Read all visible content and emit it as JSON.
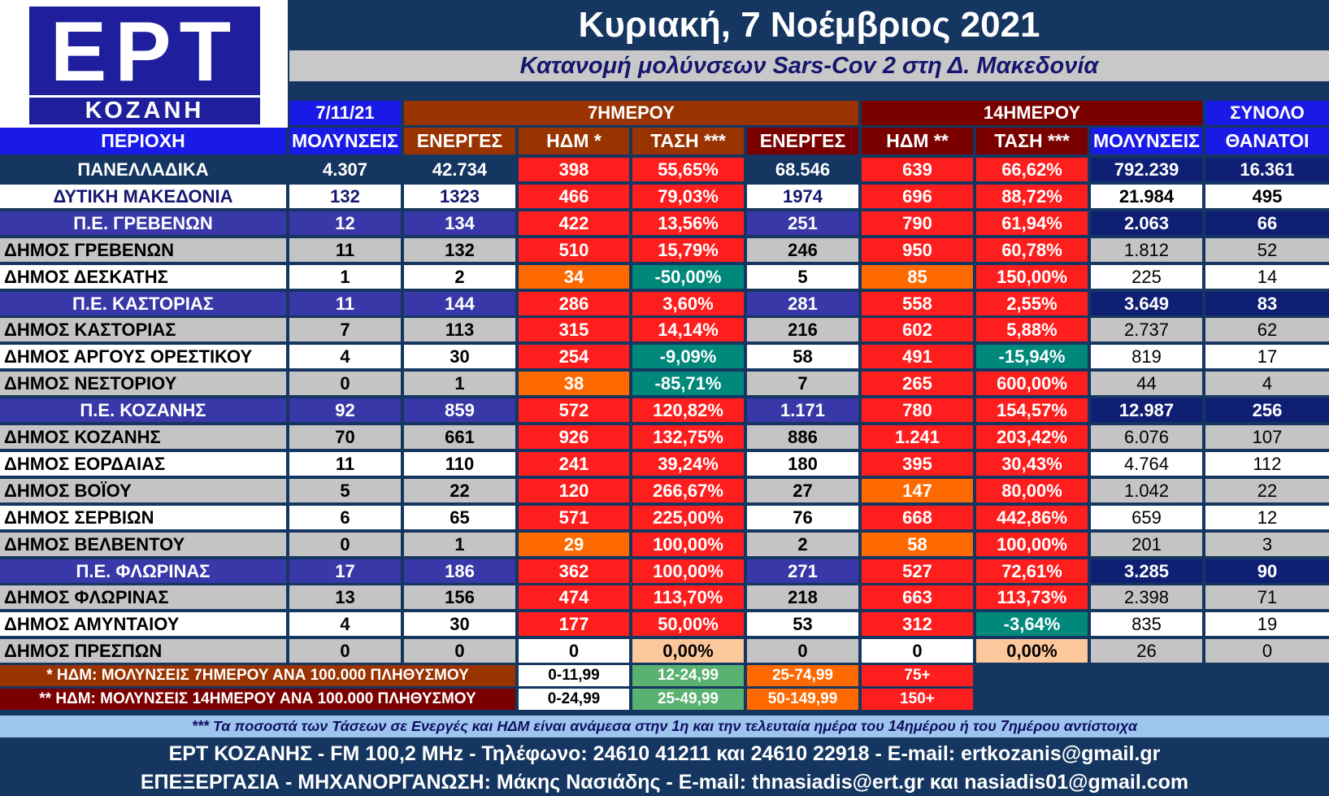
{
  "logo": {
    "brand": "ΕΡΤ",
    "city": "ΚΟΖΑΝΗ"
  },
  "header": {
    "date_title": "Κυριακή, 7 Νοέμβριος 2021",
    "subtitle": "Κατανομή μολύνσεων Sars-Cov 2 στη Δ. Μακεδονία"
  },
  "group_headers": {
    "date": "7/11/21",
    "seven_day": "7ΗΜΕΡΟΥ",
    "fourteen_day": "14ΗΜΕΡΟΥ",
    "total": "ΣΥΝΟΛΟ"
  },
  "column_headers": [
    "ΠΕΡΙΟΧΗ",
    "ΜΟΛΥΝΣΕΙΣ",
    "ΕΝΕΡΓΕΣ",
    "ΗΔΜ *",
    "ΤΑΣΗ ***",
    "ΕΝΕΡΓΕΣ",
    "ΗΔΜ **",
    "ΤΑΣΗ ***",
    "ΜΟΛΥΝΣΕΙΣ",
    "ΘΑΝΑΤΟΙ"
  ],
  "colors": {
    "background": "#143660",
    "header_blue": "#1a1ae6",
    "seven_day": "#993300",
    "fourteen_day": "#7a0000",
    "red": "#ff1e1e",
    "orange": "#ff6a00",
    "teal": "#00897b",
    "light_green": "#5ab270",
    "peach": "#fcc79a",
    "navy_total": "#0f1f73"
  },
  "rows": [
    {
      "type": "national",
      "cells": [
        "ΠΑΝΕΛΛΑΔΙΚΑ",
        "4.307",
        "42.734",
        "398",
        "55,65%",
        "68.546",
        "639",
        "66,62%",
        "792.239",
        "16.361"
      ],
      "levels": [
        "red",
        "red",
        "red",
        "red"
      ]
    },
    {
      "type": "macedonia",
      "cells": [
        "ΔΥΤΙΚΗ ΜΑΚΕΔΟΝΙΑ",
        "132",
        "1323",
        "466",
        "79,03%",
        "1974",
        "696",
        "88,72%",
        "21.984",
        "495"
      ],
      "levels": [
        "red",
        "red",
        "red",
        "red"
      ]
    },
    {
      "type": "pe",
      "cells": [
        "Π.Ε. ΓΡΕΒΕΝΩΝ",
        "12",
        "134",
        "422",
        "13,56%",
        "251",
        "790",
        "61,94%",
        "2.063",
        "66"
      ],
      "levels": [
        "red",
        "red",
        "red",
        "red"
      ]
    },
    {
      "type": "gray",
      "cells": [
        "ΔΗΜΟΣ ΓΡΕΒΕΝΩΝ",
        "11",
        "132",
        "510",
        "15,79%",
        "246",
        "950",
        "60,78%",
        "1.812",
        "52"
      ],
      "levels": [
        "red",
        "red",
        "red",
        "red"
      ]
    },
    {
      "type": "white",
      "cells": [
        "ΔΗΜΟΣ ΔΕΣΚΑΤΗΣ",
        "1",
        "2",
        "34",
        "-50,00%",
        "5",
        "85",
        "150,00%",
        "225",
        "14"
      ],
      "levels": [
        "orange",
        "teal",
        "orange",
        "red"
      ]
    },
    {
      "type": "pe",
      "cells": [
        "Π.Ε. ΚΑΣΤΟΡΙΑΣ",
        "11",
        "144",
        "286",
        "3,60%",
        "281",
        "558",
        "2,55%",
        "3.649",
        "83"
      ],
      "levels": [
        "red",
        "red",
        "red",
        "red"
      ]
    },
    {
      "type": "gray",
      "cells": [
        "ΔΗΜΟΣ ΚΑΣΤΟΡΙΑΣ",
        "7",
        "113",
        "315",
        "14,14%",
        "216",
        "602",
        "5,88%",
        "2.737",
        "62"
      ],
      "levels": [
        "red",
        "red",
        "red",
        "red"
      ]
    },
    {
      "type": "white",
      "cells": [
        "ΔΗΜΟΣ ΑΡΓΟΥΣ ΟΡΕΣΤΙΚΟΥ",
        "4",
        "30",
        "254",
        "-9,09%",
        "58",
        "491",
        "-15,94%",
        "819",
        "17"
      ],
      "levels": [
        "red",
        "teal",
        "red",
        "teal"
      ]
    },
    {
      "type": "gray",
      "cells": [
        "ΔΗΜΟΣ ΝΕΣΤΟΡΙΟΥ",
        "0",
        "1",
        "38",
        "-85,71%",
        "7",
        "265",
        "600,00%",
        "44",
        "4"
      ],
      "levels": [
        "orange",
        "teal",
        "red",
        "red"
      ]
    },
    {
      "type": "pe",
      "cells": [
        "Π.Ε. ΚΟΖΑΝΗΣ",
        "92",
        "859",
        "572",
        "120,82%",
        "1.171",
        "780",
        "154,57%",
        "12.987",
        "256"
      ],
      "levels": [
        "red",
        "red",
        "red",
        "red"
      ]
    },
    {
      "type": "gray",
      "cells": [
        "ΔΗΜΟΣ ΚΟΖΑΝΗΣ",
        "70",
        "661",
        "926",
        "132,75%",
        "886",
        "1.241",
        "203,42%",
        "6.076",
        "107"
      ],
      "levels": [
        "red",
        "red",
        "red",
        "red"
      ]
    },
    {
      "type": "white",
      "cells": [
        "ΔΗΜΟΣ ΕΟΡΔΑΙΑΣ",
        "11",
        "110",
        "241",
        "39,24%",
        "180",
        "395",
        "30,43%",
        "4.764",
        "112"
      ],
      "levels": [
        "red",
        "red",
        "red",
        "red"
      ]
    },
    {
      "type": "gray",
      "cells": [
        "ΔΗΜΟΣ ΒΟΪΟΥ",
        "5",
        "22",
        "120",
        "266,67%",
        "27",
        "147",
        "80,00%",
        "1.042",
        "22"
      ],
      "levels": [
        "red",
        "red",
        "orange",
        "red"
      ]
    },
    {
      "type": "white",
      "cells": [
        "ΔΗΜΟΣ ΣΕΡΒΙΩΝ",
        "6",
        "65",
        "571",
        "225,00%",
        "76",
        "668",
        "442,86%",
        "659",
        "12"
      ],
      "levels": [
        "red",
        "red",
        "red",
        "red"
      ]
    },
    {
      "type": "gray",
      "cells": [
        "ΔΗΜΟΣ ΒΕΛΒΕΝΤΟΥ",
        "0",
        "1",
        "29",
        "100,00%",
        "2",
        "58",
        "100,00%",
        "201",
        "3"
      ],
      "levels": [
        "orange",
        "red",
        "orange",
        "red"
      ]
    },
    {
      "type": "pe",
      "cells": [
        "Π.Ε. ΦΛΩΡΙΝΑΣ",
        "17",
        "186",
        "362",
        "100,00%",
        "271",
        "527",
        "72,61%",
        "3.285",
        "90"
      ],
      "levels": [
        "red",
        "red",
        "red",
        "red"
      ]
    },
    {
      "type": "gray",
      "cells": [
        "ΔΗΜΟΣ ΦΛΩΡΙΝΑΣ",
        "13",
        "156",
        "474",
        "113,70%",
        "218",
        "663",
        "113,73%",
        "2.398",
        "71"
      ],
      "levels": [
        "red",
        "red",
        "red",
        "red"
      ]
    },
    {
      "type": "white",
      "cells": [
        "ΔΗΜΟΣ ΑΜΥΝΤΑΙΟΥ",
        "4",
        "30",
        "177",
        "50,00%",
        "53",
        "312",
        "-3,64%",
        "835",
        "19"
      ],
      "levels": [
        "red",
        "red",
        "red",
        "teal"
      ]
    },
    {
      "type": "gray",
      "cells": [
        "ΔΗΜΟΣ ΠΡΕΣΠΩΝ",
        "0",
        "0",
        "0",
        "0,00%",
        "0",
        "0",
        "0,00%",
        "26",
        "0"
      ],
      "levels": [
        "white",
        "peach",
        "white",
        "peach"
      ]
    }
  ],
  "legend": [
    {
      "label": "* ΗΔΜ: ΜΟΛΥΝΣΕΙΣ 7ΗΜΕΡΟΥ ΑΝΑ 100.000 ΠΛΗΘΥΣΜΟΥ",
      "ranges": [
        "0-11,99",
        "12-24,99",
        "25-74,99",
        "75+"
      ]
    },
    {
      "label": "** ΗΔΜ: ΜΟΛΥΝΣΕΙΣ 14ΗΜΕΡΟΥ ΑΝΑ 100.000 ΠΛΗΘΥΣΜΟΥ",
      "ranges": [
        "0-24,99",
        "25-49,99",
        "50-149,99",
        "150+"
      ]
    }
  ],
  "footer": {
    "note": "*** Τα ποσοστά των Τάσεων σε Ενεργές και ΗΔΜ είναι ανάμεσα στην 1η και την τελευταία ημέρα του 14ημέρου ή του 7ημέρου αντίστοιχα",
    "contact": "ΕΡΤ ΚΟΖΑΝΗΣ - FM 100,2 MHz - Τηλέφωνο:  24610 41211 και 24610 22918 - E-mail: ertkozanis@gmail.gr",
    "credits": "ΕΠΕΞΕΡΓΑΣΙΑ  -  ΜΗΧΑΝΟΡΓΑΝΩΣΗ: Μάκης Νασιάδης  -   E-mail: thnasiadis@ert.gr και nasiadis01@gmail.com"
  }
}
